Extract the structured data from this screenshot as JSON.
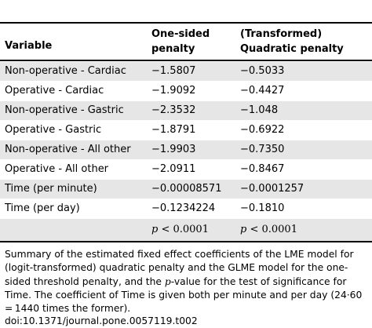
{
  "table": {
    "headers": {
      "variable": "Variable",
      "one_sided_line1": "One-sided",
      "one_sided_line2": "penalty",
      "quadratic_line1": "(Transformed)",
      "quadratic_line2": "Quadratic penalty"
    },
    "rows": [
      {
        "variable": "Non-operative - Cardiac",
        "one_sided": "−1.5807",
        "quadratic": "−0.5033"
      },
      {
        "variable": "Operative - Cardiac",
        "one_sided": "−1.9092",
        "quadratic": "−0.4427"
      },
      {
        "variable": "Non-operative - Gastric",
        "one_sided": "−2.3532",
        "quadratic": "−1.048"
      },
      {
        "variable": "Operative - Gastric",
        "one_sided": "−1.8791",
        "quadratic": "−0.6922"
      },
      {
        "variable": "Non-operative - All other",
        "one_sided": "−1.9903",
        "quadratic": "−0.7350"
      },
      {
        "variable": "Operative - All other",
        "one_sided": "−2.0911",
        "quadratic": "−0.8467"
      },
      {
        "variable": "Time (per minute)",
        "one_sided": "−0.00008571",
        "quadratic": "−0.0001257"
      },
      {
        "variable": "Time (per day)",
        "one_sided": "−0.1234224",
        "quadratic": "−0.1810"
      }
    ],
    "pvalue_row": {
      "variable": "",
      "one_sided": "p < 0.0001",
      "quadratic": "p < 0.0001"
    }
  },
  "caption": {
    "text_a": "Summary of the estimated fixed effect coefficients of the LME model for (logit-transformed) quadratic penalty and the GLME model for the one-sided threshold penalty, and the ",
    "p_italic": "p",
    "text_b": "-value for the test of significance for Time. The coefficient of Time is given both per minute and per day (24·60 = 1440 times the former).",
    "doi": "doi:10.1371/journal.pone.0057119.t002"
  }
}
